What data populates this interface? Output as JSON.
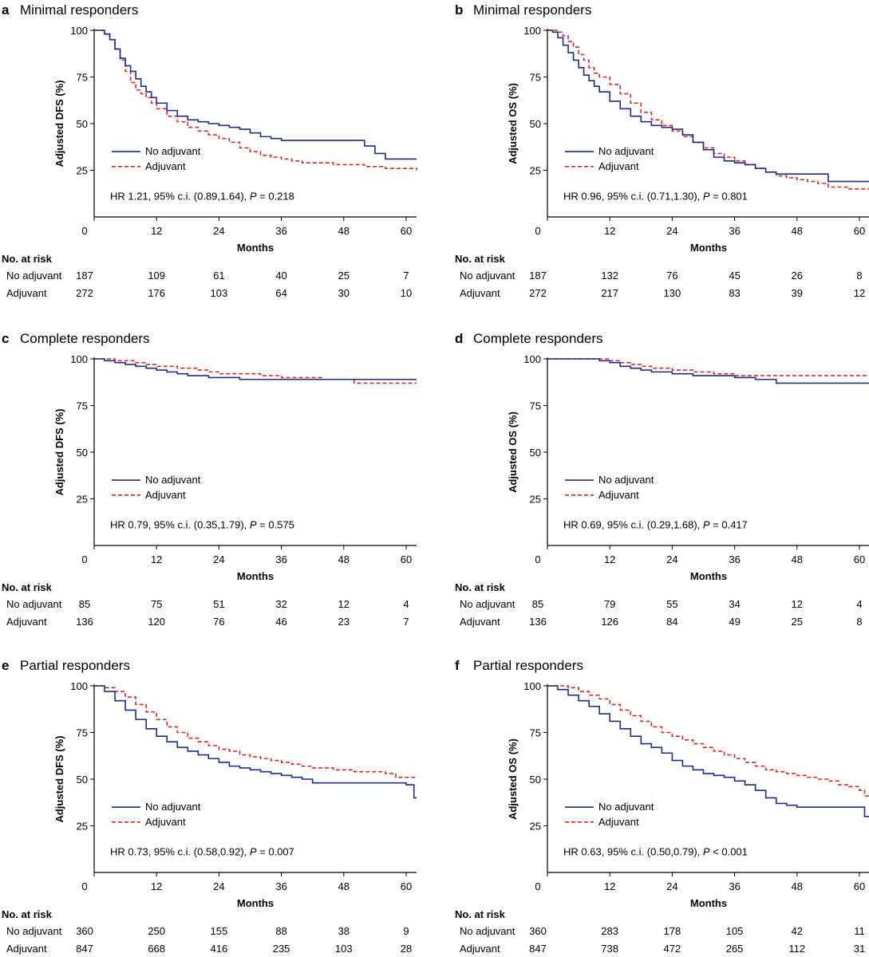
{
  "colors": {
    "no_adjuvant": "#1f2a8a",
    "adjuvant": "#d6282a",
    "axis": "#000000"
  },
  "chart_data": [
    {
      "type": "line",
      "letter": "a",
      "title": "Minimal responders",
      "ylabel": "Adjusted DFS (%)",
      "xlabel": "Months",
      "xlim": [
        0,
        62
      ],
      "ylim": [
        0,
        100
      ],
      "x_ticks": [
        "0",
        "12",
        "24",
        "36",
        "48",
        "60"
      ],
      "y_ticks": [
        "100",
        "75",
        "50",
        "25"
      ],
      "legend": [
        "No adjuvant",
        "Adjuvant"
      ],
      "hr_text": "HR 1.21, 95% c.i. (0.89,1.64), ",
      "p_label": "P",
      "p_value": " = 0.218",
      "series": [
        {
          "name": "No adjuvant",
          "x": [
            0,
            1,
            2,
            3,
            4,
            5,
            6,
            7,
            8,
            9,
            10,
            11,
            12,
            14,
            16,
            18,
            20,
            22,
            24,
            26,
            28,
            30,
            32,
            34,
            36,
            38,
            40,
            42,
            44,
            46,
            48,
            50,
            52,
            54,
            56,
            62
          ],
          "y": [
            100,
            100,
            98,
            95,
            90,
            85,
            81,
            78,
            74,
            70,
            67,
            64,
            61,
            57,
            54,
            52,
            51,
            50,
            49,
            48,
            47,
            45,
            43,
            42,
            41,
            41,
            41,
            41,
            41,
            41,
            41,
            41,
            38,
            34,
            31,
            31
          ]
        },
        {
          "name": "Adjuvant",
          "x": [
            0,
            1,
            2,
            3,
            4,
            5,
            6,
            7,
            8,
            9,
            10,
            11,
            12,
            14,
            16,
            18,
            20,
            22,
            24,
            26,
            28,
            30,
            32,
            34,
            36,
            38,
            40,
            42,
            44,
            46,
            48,
            50,
            52,
            54,
            56,
            62
          ],
          "y": [
            100,
            100,
            98,
            95,
            90,
            84,
            78,
            72,
            68,
            66,
            64,
            61,
            58,
            54,
            51,
            48,
            46,
            44,
            42,
            40,
            37,
            35,
            33,
            32,
            31,
            30,
            29,
            29,
            29,
            28,
            28,
            28,
            27,
            27,
            26,
            25
          ]
        }
      ],
      "risk": {
        "header": "No. at risk",
        "rows": [
          {
            "label": "No adjuvant",
            "values": [
              "187",
              "109",
              "61",
              "40",
              "25",
              "7"
            ]
          },
          {
            "label": "Adjuvant",
            "values": [
              "272",
              "176",
              "103",
              "64",
              "30",
              "10"
            ]
          }
        ]
      }
    },
    {
      "type": "line",
      "letter": "b",
      "title": "Minimal responders",
      "ylabel": "Adjusted OS (%)",
      "xlabel": "Months",
      "xlim": [
        0,
        62
      ],
      "ylim": [
        0,
        100
      ],
      "x_ticks": [
        "0",
        "12",
        "24",
        "36",
        "48",
        "60"
      ],
      "y_ticks": [
        "100",
        "75",
        "50",
        "25"
      ],
      "legend": [
        "No adjuvant",
        "Adjuvant"
      ],
      "hr_text": "HR 0.96, 95% c.i. (0.71,1.30), ",
      "p_label": "P",
      "p_value": " = 0.801",
      "series": [
        {
          "name": "No adjuvant",
          "x": [
            0,
            1,
            2,
            3,
            4,
            5,
            6,
            7,
            8,
            9,
            10,
            12,
            14,
            16,
            18,
            20,
            22,
            24,
            26,
            28,
            30,
            32,
            34,
            36,
            38,
            40,
            42,
            44,
            46,
            48,
            50,
            52,
            54,
            56,
            58,
            62
          ],
          "y": [
            100,
            99,
            96,
            92,
            88,
            84,
            80,
            76,
            73,
            70,
            67,
            62,
            58,
            54,
            51,
            49,
            48,
            47,
            44,
            40,
            36,
            32,
            30,
            29,
            28,
            26,
            24,
            23,
            23,
            23,
            23,
            23,
            19,
            19,
            19,
            18
          ]
        },
        {
          "name": "Adjuvant",
          "x": [
            0,
            1,
            2,
            3,
            4,
            5,
            6,
            7,
            8,
            9,
            10,
            12,
            14,
            16,
            18,
            20,
            22,
            24,
            26,
            28,
            30,
            32,
            34,
            36,
            38,
            40,
            42,
            44,
            46,
            48,
            50,
            52,
            54,
            56,
            58,
            62
          ],
          "y": [
            100,
            100,
            99,
            97,
            94,
            91,
            87,
            84,
            80,
            77,
            75,
            71,
            66,
            61,
            56,
            52,
            49,
            46,
            43,
            40,
            37,
            34,
            32,
            30,
            28,
            26,
            24,
            22,
            21,
            20,
            19,
            18,
            16,
            16,
            15,
            14
          ]
        }
      ],
      "risk": {
        "header": "No. at risk",
        "rows": [
          {
            "label": "No adjuvant",
            "values": [
              "187",
              "132",
              "76",
              "45",
              "26",
              "8"
            ]
          },
          {
            "label": "Adjuvant",
            "values": [
              "272",
              "217",
              "130",
              "83",
              "39",
              "12"
            ]
          }
        ]
      }
    },
    {
      "type": "line",
      "letter": "c",
      "title": "Complete responders",
      "ylabel": "Adjusted DFS (%)",
      "xlabel": "Months",
      "xlim": [
        0,
        62
      ],
      "ylim": [
        0,
        100
      ],
      "x_ticks": [
        "0",
        "12",
        "24",
        "36",
        "48",
        "60"
      ],
      "y_ticks": [
        "100",
        "75",
        "50",
        "25"
      ],
      "legend": [
        "No adjuvant",
        "Adjuvant"
      ],
      "hr_text": "HR 0.79, 95% c.i. (0.35,1.79), ",
      "p_label": "P",
      "p_value": " = 0.575",
      "series": [
        {
          "name": "No adjuvant",
          "x": [
            0,
            2,
            4,
            6,
            8,
            10,
            12,
            14,
            16,
            18,
            20,
            22,
            24,
            26,
            28,
            30,
            32,
            36,
            40,
            44,
            48,
            52,
            56,
            62
          ],
          "y": [
            100,
            99,
            98,
            97,
            96,
            95,
            94,
            93,
            92,
            91,
            91,
            90,
            90,
            90,
            89,
            89,
            89,
            89,
            89,
            89,
            89,
            89,
            89,
            89
          ]
        },
        {
          "name": "Adjuvant",
          "x": [
            0,
            2,
            4,
            6,
            8,
            10,
            12,
            14,
            16,
            18,
            20,
            22,
            24,
            26,
            28,
            30,
            32,
            34,
            36,
            40,
            44,
            48,
            50,
            62
          ],
          "y": [
            100,
            100,
            99,
            99,
            98,
            97,
            96,
            96,
            95,
            95,
            94,
            93,
            92,
            92,
            92,
            92,
            91,
            91,
            90,
            90,
            89,
            89,
            87,
            87
          ]
        }
      ],
      "risk": {
        "header": "No. at risk",
        "rows": [
          {
            "label": "No adjuvant",
            "values": [
              "85",
              "75",
              "51",
              "32",
              "12",
              "4"
            ]
          },
          {
            "label": "Adjuvant",
            "values": [
              "136",
              "120",
              "76",
              "46",
              "23",
              "7"
            ]
          }
        ]
      }
    },
    {
      "type": "line",
      "letter": "d",
      "title": "Complete responders",
      "ylabel": "Adjusted OS (%)",
      "xlabel": "Months",
      "xlim": [
        0,
        62
      ],
      "ylim": [
        0,
        100
      ],
      "x_ticks": [
        "0",
        "12",
        "24",
        "36",
        "48",
        "60"
      ],
      "y_ticks": [
        "100",
        "75",
        "50",
        "25"
      ],
      "legend": [
        "No adjuvant",
        "Adjuvant"
      ],
      "hr_text": "HR 0.69, 95% c.i. (0.29,1.68), ",
      "p_label": "P",
      "p_value": " = 0.417",
      "series": [
        {
          "name": "No adjuvant",
          "x": [
            0,
            4,
            8,
            10,
            12,
            14,
            16,
            18,
            20,
            24,
            28,
            32,
            36,
            40,
            44,
            48,
            52,
            56,
            62
          ],
          "y": [
            100,
            100,
            100,
            99,
            98,
            96,
            95,
            94,
            93,
            92,
            91,
            91,
            90,
            89,
            87,
            87,
            87,
            87,
            87
          ]
        },
        {
          "name": "Adjuvant",
          "x": [
            0,
            4,
            8,
            10,
            12,
            14,
            16,
            18,
            20,
            24,
            28,
            32,
            36,
            40,
            44,
            48,
            52,
            56,
            62
          ],
          "y": [
            100,
            100,
            100,
            100,
            99,
            98,
            97,
            96,
            95,
            94,
            93,
            92,
            91,
            91,
            91,
            91,
            91,
            91,
            91
          ]
        }
      ],
      "risk": {
        "header": "No. at risk",
        "rows": [
          {
            "label": "No adjuvant",
            "values": [
              "85",
              "79",
              "55",
              "34",
              "12",
              "4"
            ]
          },
          {
            "label": "Adjuvant",
            "values": [
              "136",
              "126",
              "84",
              "49",
              "25",
              "8"
            ]
          }
        ]
      }
    },
    {
      "type": "line",
      "letter": "e",
      "title": "Partial responders",
      "ylabel": "Adjusted DFS (%)",
      "xlabel": "Months",
      "xlim": [
        0,
        62
      ],
      "ylim": [
        0,
        100
      ],
      "x_ticks": [
        "0",
        "12",
        "24",
        "36",
        "48",
        "60"
      ],
      "y_ticks": [
        "100",
        "75",
        "50",
        "25"
      ],
      "legend": [
        "No adjuvant",
        "Adjuvant"
      ],
      "hr_text": "HR 0.73, 95% c.i. (0.58,0.92), ",
      "p_label": "P",
      "p_value": " = 0.007",
      "series": [
        {
          "name": "No adjuvant",
          "x": [
            0,
            2,
            4,
            6,
            8,
            10,
            12,
            14,
            16,
            18,
            20,
            22,
            24,
            26,
            28,
            30,
            32,
            34,
            36,
            38,
            40,
            42,
            44,
            46,
            48,
            50,
            52,
            54,
            56,
            58,
            60,
            61,
            61.5,
            62
          ],
          "y": [
            100,
            97,
            92,
            87,
            82,
            77,
            73,
            70,
            67,
            65,
            63,
            61,
            59,
            57,
            56,
            55,
            54,
            53,
            52,
            51,
            50,
            48,
            48,
            48,
            48,
            48,
            48,
            48,
            48,
            48,
            47,
            47,
            40,
            40
          ]
        },
        {
          "name": "Adjuvant",
          "x": [
            0,
            2,
            4,
            6,
            8,
            10,
            12,
            14,
            16,
            18,
            20,
            22,
            24,
            26,
            28,
            30,
            32,
            34,
            36,
            38,
            40,
            42,
            44,
            46,
            48,
            50,
            52,
            54,
            56,
            58,
            60,
            62
          ],
          "y": [
            100,
            99,
            97,
            94,
            90,
            86,
            82,
            78,
            75,
            72,
            70,
            68,
            66,
            65,
            63,
            62,
            61,
            60,
            59,
            58,
            57,
            56,
            56,
            55,
            55,
            54,
            54,
            54,
            53,
            51,
            51,
            51
          ]
        }
      ],
      "risk": {
        "header": "No. at risk",
        "rows": [
          {
            "label": "No adjuvant",
            "values": [
              "360",
              "250",
              "155",
              "88",
              "38",
              "9"
            ]
          },
          {
            "label": "Adjuvant",
            "values": [
              "847",
              "668",
              "416",
              "235",
              "103",
              "28"
            ]
          }
        ]
      }
    },
    {
      "type": "line",
      "letter": "f",
      "title": "Partial responders",
      "ylabel": "Adjusted OS (%)",
      "xlabel": "Months",
      "xlim": [
        0,
        62
      ],
      "ylim": [
        0,
        100
      ],
      "x_ticks": [
        "0",
        "12",
        "24",
        "36",
        "48",
        "60"
      ],
      "y_ticks": [
        "100",
        "75",
        "50",
        "25"
      ],
      "legend": [
        "No adjuvant",
        "Adjuvant"
      ],
      "hr_text": "HR 0.63, 95% c.i. (0.50,0.79), ",
      "p_label": "P",
      "p_value": " < 0.001",
      "series": [
        {
          "name": "No adjuvant",
          "x": [
            0,
            2,
            4,
            6,
            8,
            10,
            12,
            14,
            16,
            18,
            20,
            22,
            24,
            26,
            28,
            30,
            32,
            34,
            36,
            38,
            40,
            42,
            44,
            46,
            48,
            50,
            52,
            54,
            56,
            58,
            60,
            61,
            62
          ],
          "y": [
            100,
            98,
            95,
            92,
            89,
            85,
            81,
            77,
            73,
            69,
            67,
            64,
            60,
            57,
            55,
            53,
            52,
            51,
            49,
            47,
            44,
            40,
            37,
            36,
            35,
            35,
            35,
            35,
            35,
            35,
            35,
            30,
            30
          ]
        },
        {
          "name": "Adjuvant",
          "x": [
            0,
            2,
            4,
            6,
            8,
            10,
            12,
            14,
            16,
            18,
            20,
            22,
            24,
            26,
            28,
            30,
            32,
            34,
            36,
            38,
            40,
            42,
            44,
            46,
            48,
            50,
            52,
            54,
            56,
            58,
            60,
            61,
            62
          ],
          "y": [
            100,
            100,
            99,
            97,
            95,
            93,
            90,
            87,
            84,
            81,
            78,
            75,
            73,
            71,
            69,
            67,
            65,
            63,
            61,
            59,
            57,
            55,
            54,
            53,
            52,
            51,
            50,
            49,
            47,
            46,
            44,
            41,
            40
          ]
        }
      ],
      "risk": {
        "header": "No. at risk",
        "rows": [
          {
            "label": "No adjuvant",
            "values": [
              "360",
              "283",
              "178",
              "105",
              "42",
              "11"
            ]
          },
          {
            "label": "Adjuvant",
            "values": [
              "847",
              "738",
              "472",
              "265",
              "112",
              "31"
            ]
          }
        ]
      }
    }
  ]
}
